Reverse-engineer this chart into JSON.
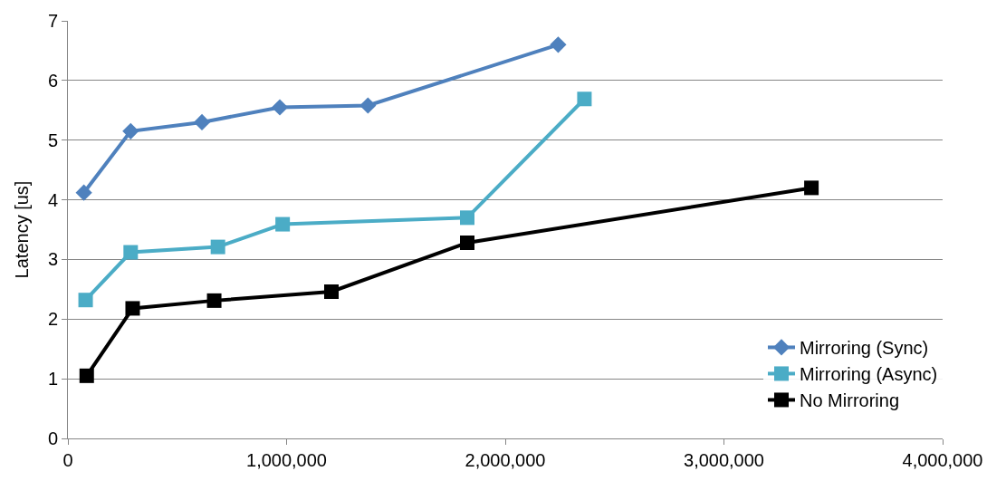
{
  "chart_data": {
    "type": "line",
    "ylabel": "Latency [us]",
    "xlim": [
      0,
      4000000
    ],
    "xticks": [
      {
        "value": 0,
        "label": "0"
      },
      {
        "value": 1000000,
        "label": "1,000,000"
      },
      {
        "value": 2000000,
        "label": "2,000,000"
      },
      {
        "value": 3000000,
        "label": "3,000,000"
      },
      {
        "value": 4000000,
        "label": "4,000,000"
      }
    ],
    "ylim": [
      0,
      7
    ],
    "yticks": [
      0,
      1,
      2,
      3,
      4,
      5,
      6,
      7
    ],
    "grid": "y",
    "legend": "bottom right",
    "series": [
      {
        "name": "Mirroring (Sync)",
        "color": "#4f81bd",
        "marker": "diamond",
        "x": [
          73000,
          287000,
          613000,
          969000,
          1372000,
          2242000
        ],
        "values": [
          4.12,
          5.15,
          5.3,
          5.55,
          5.58,
          6.6
        ]
      },
      {
        "name": "Mirroring (Async)",
        "color": "#4bacc6",
        "marker": "square",
        "x": [
          81000,
          287000,
          686000,
          982000,
          1826000,
          2362000
        ],
        "values": [
          2.32,
          3.12,
          3.21,
          3.59,
          3.7,
          5.69
        ]
      },
      {
        "name": "No Mirroring",
        "color": "#000000",
        "marker": "square",
        "x": [
          86000,
          296000,
          669000,
          1205000,
          1826000,
          3400000
        ],
        "values": [
          1.05,
          2.18,
          2.31,
          2.46,
          3.28,
          4.2
        ]
      }
    ]
  }
}
